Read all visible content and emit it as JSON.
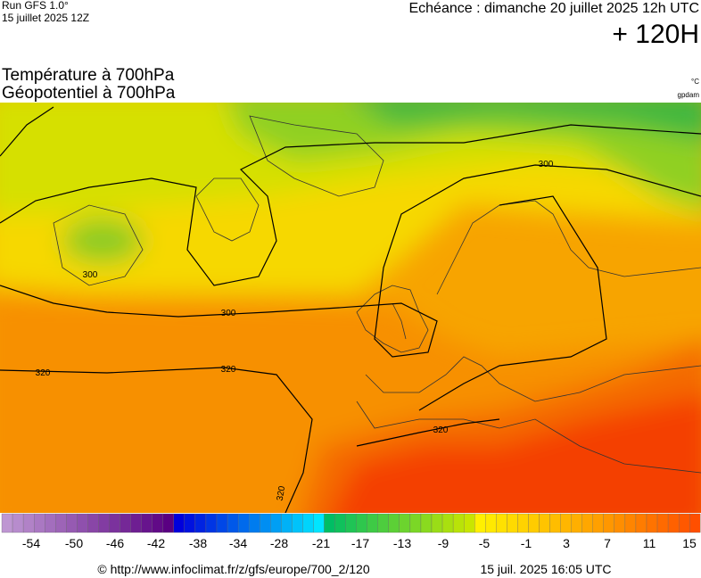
{
  "header": {
    "run": "Run GFS 1.0°",
    "run_date": "15 juillet 2025 12Z",
    "echeance": "Echéance : dimanche 20 juillet 2025 12h UTC",
    "lead": "+ 120H"
  },
  "titles": {
    "temperature": "Température à 700hPa",
    "geopotential": "Géopotentiel à 700hPa",
    "unit_temp": "°C",
    "unit_geo": "gpdam"
  },
  "contour_labels": [
    "300",
    "300",
    "300",
    "320",
    "320",
    "320",
    "320"
  ],
  "colorbar": {
    "ticks": [
      -54,
      -50,
      -46,
      -42,
      -38,
      -34,
      -28,
      -21,
      -17,
      -13,
      -9,
      -5,
      -1,
      3,
      7,
      11,
      15
    ]
  },
  "footer": {
    "url": "© http://www.infoclimat.fr/z/gfs/europe/700_2/120",
    "timestamp": "15 juil. 2025 16:05 UTC"
  }
}
